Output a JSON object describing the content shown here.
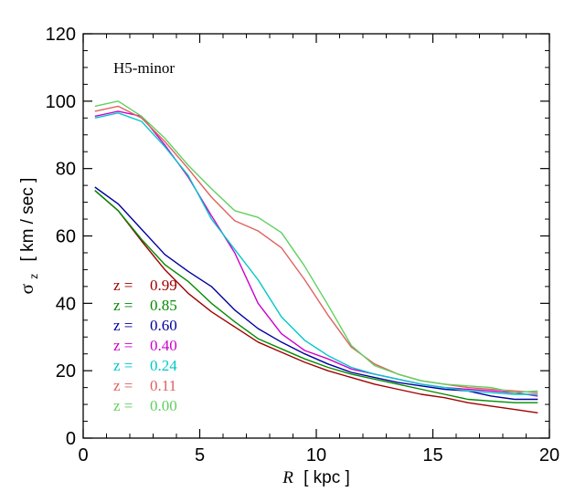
{
  "chart_data": {
    "type": "line",
    "annotation": "H5-minor",
    "xlabel": {
      "var": "R",
      "unit": "[ kpc ]"
    },
    "ylabel": {
      "var": "σ",
      "sub": "z",
      "unit": "[ km / sec ]"
    },
    "xlim": [
      0,
      20
    ],
    "ylim": [
      0,
      120
    ],
    "x_ticks": [
      0,
      5,
      10,
      15,
      20
    ],
    "y_ticks": [
      0,
      20,
      40,
      60,
      80,
      100,
      120
    ],
    "x_tick_labels": [
      "0",
      "5",
      "10",
      "15",
      "20"
    ],
    "y_tick_labels": [
      "0",
      "20",
      "40",
      "60",
      "80",
      "100",
      "120"
    ],
    "grid": false,
    "legend_placement": "lower-left",
    "x": [
      0.5,
      1.5,
      2.5,
      3.5,
      4.5,
      5.5,
      6.5,
      7.5,
      8.5,
      9.5,
      10.5,
      11.5,
      12.5,
      13.5,
      14.5,
      15.5,
      16.5,
      17.5,
      18.5,
      19.5
    ],
    "series": [
      {
        "name": "z = 0.99",
        "prefix": "z =",
        "value": "0.99",
        "color": "#a00000",
        "values": [
          73.5,
          67.5,
          58.5,
          50.0,
          43.0,
          37.5,
          33.0,
          28.5,
          25.5,
          22.5,
          20.0,
          18.0,
          16.0,
          14.5,
          13.0,
          12.0,
          10.5,
          9.5,
          8.5,
          7.5
        ]
      },
      {
        "name": "z = 0.85",
        "prefix": "z =",
        "value": "0.85",
        "color": "#008c00",
        "values": [
          73.5,
          67.5,
          59.0,
          51.5,
          46.5,
          40.0,
          34.5,
          29.5,
          26.5,
          23.5,
          21.0,
          19.0,
          17.5,
          16.0,
          14.5,
          13.0,
          11.5,
          11.0,
          10.5,
          10.5
        ]
      },
      {
        "name": "z = 0.60",
        "prefix": "z =",
        "value": "0.60",
        "color": "#0000a0",
        "values": [
          74.5,
          69.5,
          62.0,
          54.5,
          49.5,
          45.0,
          38.0,
          32.5,
          28.5,
          25.0,
          22.0,
          19.5,
          18.0,
          16.5,
          15.5,
          14.5,
          14.0,
          12.5,
          11.5,
          11.5
        ]
      },
      {
        "name": "z = 0.40",
        "prefix": "z =",
        "value": "0.40",
        "color": "#cc00cc",
        "values": [
          95.5,
          97.0,
          95.5,
          87.0,
          77.5,
          66.0,
          55.0,
          40.0,
          31.0,
          26.0,
          23.5,
          20.5,
          19.0,
          17.5,
          16.0,
          15.0,
          14.5,
          14.0,
          13.5,
          12.5
        ]
      },
      {
        "name": "z = 0.24",
        "prefix": "z =",
        "value": "0.24",
        "color": "#00c8c8",
        "values": [
          95.0,
          96.5,
          94.0,
          86.5,
          78.0,
          65.0,
          56.0,
          47.0,
          36.0,
          29.0,
          24.5,
          21.0,
          19.0,
          17.5,
          16.0,
          15.0,
          14.0,
          13.5,
          13.0,
          13.0
        ]
      },
      {
        "name": "z = 0.11",
        "prefix": "z =",
        "value": "0.11",
        "color": "#e06060",
        "values": [
          97.0,
          98.5,
          95.0,
          88.0,
          80.0,
          71.5,
          64.5,
          61.5,
          56.5,
          47.0,
          36.5,
          27.0,
          22.0,
          19.0,
          17.0,
          16.0,
          15.0,
          14.5,
          14.0,
          13.5
        ]
      },
      {
        "name": "z = 0.00",
        "prefix": "z =",
        "value": "0.00",
        "color": "#60d060",
        "values": [
          98.5,
          100.0,
          95.5,
          89.0,
          81.0,
          74.0,
          67.5,
          65.5,
          61.0,
          51.0,
          39.5,
          27.5,
          21.5,
          19.0,
          17.0,
          16.0,
          15.5,
          15.0,
          13.5,
          14.0
        ]
      }
    ]
  }
}
